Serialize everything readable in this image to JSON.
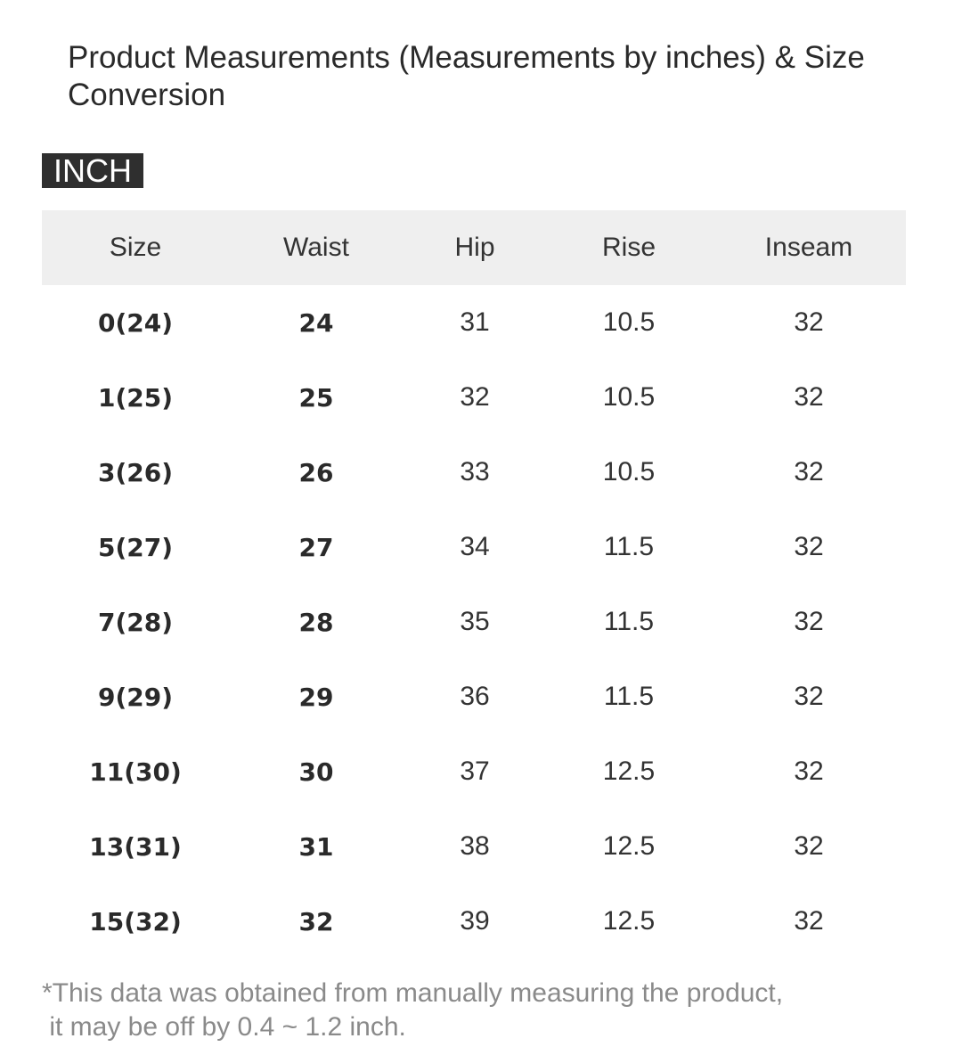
{
  "title": "Product Measurements (Measurements by inches) & Size Conversion",
  "unit_badge": "INCH",
  "table": {
    "headers": [
      "Size",
      "Waist",
      "Hip",
      "Rise",
      "Inseam"
    ],
    "rows": [
      [
        "0(24)",
        "24",
        "31",
        "10.5",
        "32"
      ],
      [
        "1(25)",
        "25",
        "32",
        "10.5",
        "32"
      ],
      [
        "3(26)",
        "26",
        "33",
        "10.5",
        "32"
      ],
      [
        "5(27)",
        "27",
        "34",
        "11.5",
        "32"
      ],
      [
        "7(28)",
        "28",
        "35",
        "11.5",
        "32"
      ],
      [
        "9(29)",
        "29",
        "36",
        "11.5",
        "32"
      ],
      [
        "11(30)",
        "30",
        "37",
        "12.5",
        "32"
      ],
      [
        "13(31)",
        "31",
        "38",
        "12.5",
        "32"
      ],
      [
        "15(32)",
        "32",
        "39",
        "12.5",
        "32"
      ]
    ]
  },
  "footnote": {
    "line1": "*This data was obtained from manually measuring the product,",
    "line2": " it may be off by 0.4 ~ 1.2 inch."
  }
}
